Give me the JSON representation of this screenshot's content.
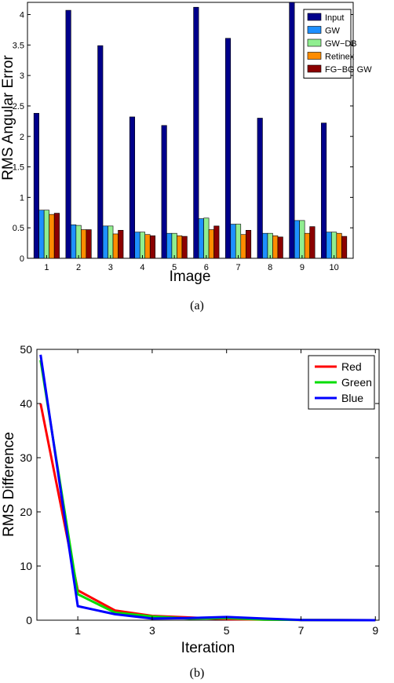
{
  "captions": {
    "a": "(a)",
    "b": "(b)"
  },
  "chart_data": [
    {
      "type": "bar",
      "xlabel": "Image",
      "ylabel": "RMS Angular Error",
      "ylim": [
        0,
        4.2
      ],
      "yticks": [
        "0",
        "0.5",
        "1",
        "1.5",
        "2",
        "2.5",
        "3",
        "3.5",
        "4"
      ],
      "categories": [
        "1",
        "2",
        "3",
        "4",
        "5",
        "6",
        "7",
        "8",
        "9",
        "10"
      ],
      "legend_position": "top-right",
      "grid": false,
      "series": [
        {
          "name": "Input",
          "color": "#00008b",
          "values": [
            2.38,
            4.07,
            3.49,
            2.32,
            2.18,
            4.12,
            3.61,
            2.3,
            4.2,
            2.22
          ]
        },
        {
          "name": "GW",
          "color": "#1e90ff",
          "values": [
            0.79,
            0.55,
            0.53,
            0.43,
            0.41,
            0.65,
            0.56,
            0.41,
            0.62,
            0.43
          ]
        },
        {
          "name": "GW−DB",
          "color": "#90ee90",
          "values": [
            0.79,
            0.54,
            0.53,
            0.43,
            0.41,
            0.66,
            0.56,
            0.41,
            0.62,
            0.43
          ]
        },
        {
          "name": "Retinex",
          "color": "#ff8c00",
          "values": [
            0.72,
            0.47,
            0.4,
            0.39,
            0.37,
            0.47,
            0.39,
            0.37,
            0.41,
            0.41
          ]
        },
        {
          "name": "FG−BG GW",
          "color": "#8b0000",
          "values": [
            0.74,
            0.47,
            0.46,
            0.37,
            0.36,
            0.53,
            0.46,
            0.35,
            0.52,
            0.36
          ]
        }
      ]
    },
    {
      "type": "line",
      "xlabel": "Iteration",
      "ylabel": "RMS Difference",
      "xlim": [
        -0.1,
        9.1
      ],
      "ylim": [
        0,
        50
      ],
      "xticks": [
        "1",
        "3",
        "5",
        "7",
        "9"
      ],
      "yticks": [
        "0",
        "10",
        "20",
        "30",
        "40",
        "50"
      ],
      "legend_position": "top-right",
      "grid": false,
      "x": [
        0,
        1,
        2,
        3,
        4,
        5,
        6,
        7,
        8,
        9
      ],
      "series": [
        {
          "name": "Red",
          "color": "#ff0000",
          "values": [
            40,
            5.5,
            1.8,
            0.8,
            0.5,
            0.2,
            0.1,
            0.05,
            0.02,
            0
          ]
        },
        {
          "name": "Green",
          "color": "#00dd00",
          "values": [
            48,
            4.8,
            1.4,
            0.7,
            0.3,
            0.4,
            0.1,
            0.05,
            0.02,
            0
          ]
        },
        {
          "name": "Blue",
          "color": "#0000ff",
          "values": [
            49,
            2.6,
            1.1,
            0.3,
            0.4,
            0.6,
            0.3,
            0.05,
            0.02,
            0
          ]
        }
      ]
    }
  ]
}
